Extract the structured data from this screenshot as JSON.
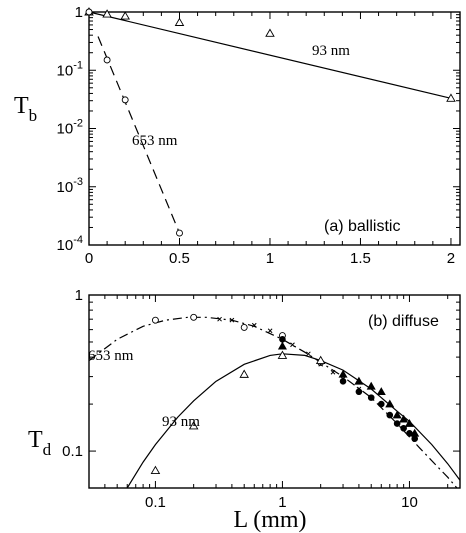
{
  "chart_data": [
    {
      "type": "line",
      "panel_label": "(a) ballistic",
      "ylabel_main": "T",
      "ylabel_sub": "b",
      "xlabel": "",
      "x_scale": "linear",
      "y_scale": "log",
      "xlim": [
        0,
        2.05
      ],
      "ylim": [
        0.0001,
        1
      ],
      "x_ticks": [
        0,
        0.5,
        1,
        1.5,
        2
      ],
      "x_tick_labels": [
        "0",
        "0.5",
        "1",
        "1.5",
        "2"
      ],
      "y_ticks": [
        1,
        0.1,
        0.01,
        0.001,
        0.0001
      ],
      "y_tick_labels": [
        {
          "base": "1",
          "exp": ""
        },
        {
          "base": "10",
          "exp": "-1"
        },
        {
          "base": "10",
          "exp": "-2"
        },
        {
          "base": "10",
          "exp": "-3"
        },
        {
          "base": "10",
          "exp": "-4"
        }
      ],
      "grid": false,
      "series": [
        {
          "name": "93 nm",
          "marker": "open-triangle",
          "line_style": "solid",
          "x": [
            0,
            0.1,
            0.2,
            0.5,
            1,
            2
          ],
          "y": [
            1,
            0.92,
            0.85,
            0.66,
            0.43,
            0.033
          ],
          "fit_y": [
            1,
            0.033
          ]
        },
        {
          "name": "653 nm",
          "marker": "open-circle",
          "line_style": "dashed",
          "x": [
            0,
            0.1,
            0.2,
            0.5
          ],
          "y": [
            1,
            0.15,
            0.031,
            0.00016
          ],
          "fit_x": [
            0.05,
            0.5
          ],
          "fit_y": [
            0.38,
            0.00016
          ]
        }
      ]
    },
    {
      "type": "line",
      "panel_label": "(b) diffuse",
      "ylabel_main": "T",
      "ylabel_sub": "d",
      "xlabel": "L (mm)",
      "x_scale": "log",
      "y_scale": "log",
      "xlim": [
        0.03,
        25
      ],
      "ylim": [
        0.058,
        1
      ],
      "x_ticks": [
        0.1,
        1,
        10
      ],
      "x_tick_labels": [
        "0.1",
        "1",
        "10"
      ],
      "y_ticks": [
        1,
        0.1
      ],
      "y_tick_labels": [
        {
          "base": "1",
          "exp": ""
        },
        {
          "base": "0.1",
          "exp": ""
        }
      ],
      "grid": false,
      "series": [
        {
          "name": "653 nm",
          "marker": "open-circle",
          "x": [
            0.1,
            0.2,
            0.5,
            1,
            2
          ],
          "y": [
            0.69,
            0.72,
            0.62,
            0.55,
            0.37
          ]
        },
        {
          "name": "653 nm",
          "marker": "filled-circle",
          "x": [
            1,
            3,
            4,
            5,
            6,
            7,
            8,
            9,
            10,
            11
          ],
          "y": [
            0.52,
            0.28,
            0.24,
            0.22,
            0.2,
            0.17,
            0.15,
            0.14,
            0.13,
            0.12
          ]
        },
        {
          "name": "653 nm",
          "marker": "cross",
          "x": [
            0.32,
            0.4,
            0.6,
            0.8,
            1.2,
            1.6,
            2,
            2.5,
            3,
            4
          ],
          "y": [
            0.7,
            0.69,
            0.64,
            0.59,
            0.48,
            0.42,
            0.36,
            0.32,
            0.29,
            0.25
          ]
        },
        {
          "name": "93 nm",
          "marker": "open-triangle",
          "x": [
            0.1,
            0.2,
            0.5,
            1,
            2
          ],
          "y": [
            0.075,
            0.145,
            0.31,
            0.41,
            0.38
          ]
        },
        {
          "name": "93 nm",
          "marker": "filled-triangle",
          "x": [
            1,
            3,
            4,
            5,
            6,
            7,
            8,
            9,
            10,
            11
          ],
          "y": [
            0.47,
            0.31,
            0.28,
            0.26,
            0.24,
            0.2,
            0.17,
            0.16,
            0.15,
            0.13
          ]
        }
      ],
      "curves": [
        {
          "name": "653 nm",
          "line_style": "dash-dot",
          "x": [
            0.03,
            0.05,
            0.08,
            0.12,
            0.18,
            0.25,
            0.4,
            0.6,
            1,
            1.5,
            2,
            3,
            5,
            8,
            12,
            16,
            20,
            25
          ],
          "y": [
            0.38,
            0.52,
            0.63,
            0.69,
            0.72,
            0.72,
            0.69,
            0.63,
            0.52,
            0.43,
            0.37,
            0.3,
            0.22,
            0.15,
            0.105,
            0.082,
            0.068,
            0.055
          ]
        },
        {
          "name": "93 nm",
          "line_style": "solid",
          "x": [
            0.06,
            0.08,
            0.1,
            0.15,
            0.2,
            0.3,
            0.5,
            0.8,
            1,
            1.5,
            2,
            3,
            5,
            8,
            10,
            15,
            20,
            25
          ],
          "y": [
            0.058,
            0.085,
            0.11,
            0.165,
            0.21,
            0.28,
            0.36,
            0.41,
            0.42,
            0.41,
            0.38,
            0.33,
            0.25,
            0.18,
            0.155,
            0.11,
            0.083,
            0.065
          ]
        }
      ]
    }
  ]
}
